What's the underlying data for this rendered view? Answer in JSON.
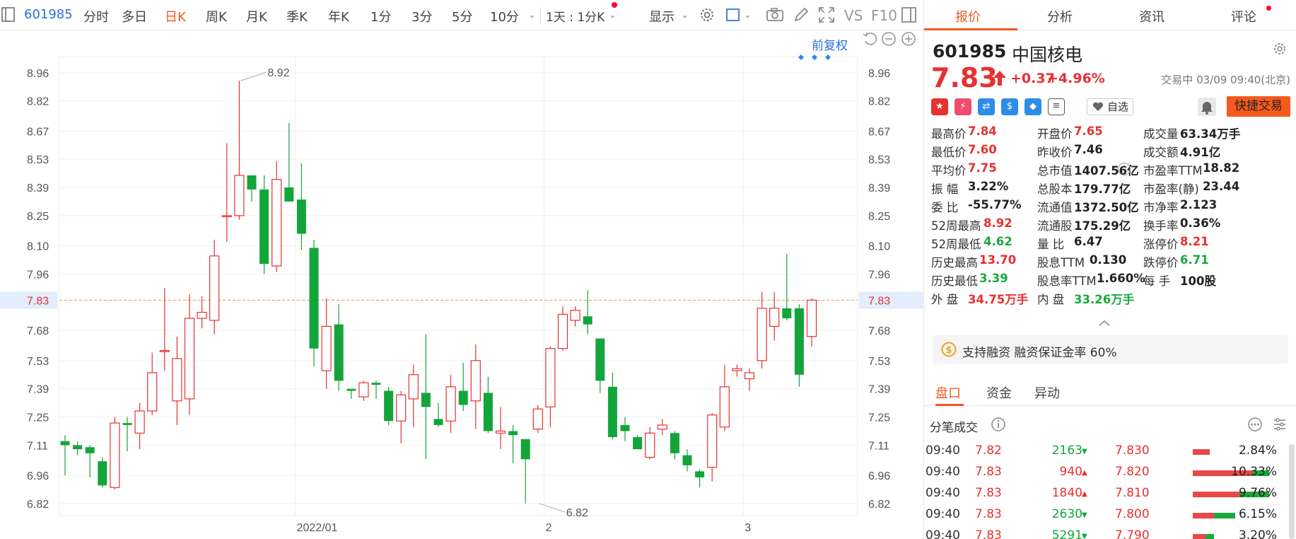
{
  "toolbar": {
    "code": "601985",
    "tabs": [
      "分时",
      "多日",
      "日K",
      "周K",
      "月K",
      "季K",
      "年K",
      "1分",
      "3分",
      "5分",
      "10分"
    ],
    "active_tab": "日K",
    "interval": "1天 : 1分K",
    "display": "显示",
    "vs": "VS",
    "f10": "F10"
  },
  "chart_controls": {
    "adjust": "前复权"
  },
  "chart_data": {
    "type": "candlestick",
    "title": "",
    "y_ticks": [
      8.96,
      8.82,
      8.67,
      8.53,
      8.39,
      8.25,
      8.1,
      7.96,
      7.83,
      7.68,
      7.53,
      7.39,
      7.25,
      7.11,
      6.96,
      6.82
    ],
    "ylim": [
      6.76,
      9.04
    ],
    "current_price": 7.83,
    "x_labels": [
      {
        "index": 19,
        "label": "2022/01"
      },
      {
        "index": 39,
        "label": "2"
      },
      {
        "index": 55,
        "label": "3"
      }
    ],
    "annotations": [
      {
        "index": 14,
        "value": 8.92,
        "label": "8.92"
      },
      {
        "index": 38,
        "value": 6.82,
        "label": "6.82"
      }
    ],
    "candles": [
      {
        "o": 7.13,
        "h": 7.16,
        "l": 6.96,
        "c": 7.11
      },
      {
        "o": 7.11,
        "h": 7.13,
        "l": 7.06,
        "c": 7.09
      },
      {
        "o": 7.1,
        "h": 7.11,
        "l": 6.95,
        "c": 7.07
      },
      {
        "o": 7.03,
        "h": 7.05,
        "l": 6.9,
        "c": 6.91
      },
      {
        "o": 6.9,
        "h": 7.25,
        "l": 6.89,
        "c": 7.22
      },
      {
        "o": 7.22,
        "h": 7.25,
        "l": 7.08,
        "c": 7.21
      },
      {
        "o": 7.17,
        "h": 7.32,
        "l": 7.09,
        "c": 7.28
      },
      {
        "o": 7.28,
        "h": 7.57,
        "l": 7.26,
        "c": 7.47
      },
      {
        "o": 7.58,
        "h": 7.89,
        "l": 7.48,
        "c": 7.58
      },
      {
        "o": 7.33,
        "h": 7.65,
        "l": 7.21,
        "c": 7.54
      },
      {
        "o": 7.34,
        "h": 7.86,
        "l": 7.26,
        "c": 7.74
      },
      {
        "o": 7.74,
        "h": 7.85,
        "l": 7.69,
        "c": 7.77
      },
      {
        "o": 7.73,
        "h": 8.13,
        "l": 7.66,
        "c": 8.05
      },
      {
        "o": 8.25,
        "h": 8.61,
        "l": 8.12,
        "c": 8.25
      },
      {
        "o": 8.25,
        "h": 8.92,
        "l": 8.23,
        "c": 8.45
      },
      {
        "o": 8.45,
        "h": 8.45,
        "l": 8.32,
        "c": 8.38
      },
      {
        "o": 8.38,
        "h": 8.45,
        "l": 7.96,
        "c": 8.01
      },
      {
        "o": 8.0,
        "h": 8.52,
        "l": 7.97,
        "c": 8.43
      },
      {
        "o": 8.39,
        "h": 8.71,
        "l": 8.32,
        "c": 8.32
      },
      {
        "o": 8.33,
        "h": 8.51,
        "l": 8.08,
        "c": 8.16
      },
      {
        "o": 8.09,
        "h": 8.13,
        "l": 7.5,
        "c": 7.59
      },
      {
        "o": 7.48,
        "h": 7.84,
        "l": 7.39,
        "c": 7.7
      },
      {
        "o": 7.71,
        "h": 7.81,
        "l": 7.38,
        "c": 7.43
      },
      {
        "o": 7.39,
        "h": 7.39,
        "l": 7.34,
        "c": 7.38
      },
      {
        "o": 7.35,
        "h": 7.43,
        "l": 7.33,
        "c": 7.42
      },
      {
        "o": 7.42,
        "h": 7.43,
        "l": 7.34,
        "c": 7.41
      },
      {
        "o": 7.38,
        "h": 7.4,
        "l": 7.21,
        "c": 7.23
      },
      {
        "o": 7.23,
        "h": 7.38,
        "l": 7.12,
        "c": 7.36
      },
      {
        "o": 7.34,
        "h": 7.51,
        "l": 7.2,
        "c": 7.46
      },
      {
        "o": 7.37,
        "h": 7.66,
        "l": 7.04,
        "c": 7.3
      },
      {
        "o": 7.24,
        "h": 7.32,
        "l": 7.2,
        "c": 7.21
      },
      {
        "o": 7.23,
        "h": 7.46,
        "l": 7.17,
        "c": 7.4
      },
      {
        "o": 7.38,
        "h": 7.52,
        "l": 7.28,
        "c": 7.31
      },
      {
        "o": 7.33,
        "h": 7.61,
        "l": 7.19,
        "c": 7.53
      },
      {
        "o": 7.37,
        "h": 7.45,
        "l": 7.17,
        "c": 7.18
      },
      {
        "o": 7.17,
        "h": 7.3,
        "l": 7.09,
        "c": 7.18
      },
      {
        "o": 7.18,
        "h": 7.21,
        "l": 7.02,
        "c": 7.16
      },
      {
        "o": 7.14,
        "h": 7.14,
        "l": 6.82,
        "c": 7.04
      },
      {
        "o": 7.19,
        "h": 7.31,
        "l": 7.17,
        "c": 7.29
      },
      {
        "o": 7.3,
        "h": 7.6,
        "l": 7.2,
        "c": 7.59
      },
      {
        "o": 7.59,
        "h": 7.8,
        "l": 7.58,
        "c": 7.76
      },
      {
        "o": 7.73,
        "h": 7.8,
        "l": 7.7,
        "c": 7.78
      },
      {
        "o": 7.75,
        "h": 7.88,
        "l": 7.66,
        "c": 7.71
      },
      {
        "o": 7.64,
        "h": 7.64,
        "l": 7.37,
        "c": 7.43
      },
      {
        "o": 7.4,
        "h": 7.47,
        "l": 7.14,
        "c": 7.15
      },
      {
        "o": 7.21,
        "h": 7.25,
        "l": 7.13,
        "c": 7.18
      },
      {
        "o": 7.15,
        "h": 7.16,
        "l": 7.09,
        "c": 7.09
      },
      {
        "o": 7.05,
        "h": 7.2,
        "l": 7.04,
        "c": 7.17
      },
      {
        "o": 7.19,
        "h": 7.24,
        "l": 7.16,
        "c": 7.21
      },
      {
        "o": 7.17,
        "h": 7.18,
        "l": 7.04,
        "c": 7.07
      },
      {
        "o": 7.06,
        "h": 7.09,
        "l": 6.98,
        "c": 7.01
      },
      {
        "o": 6.98,
        "h": 6.99,
        "l": 6.9,
        "c": 6.95
      },
      {
        "o": 7.0,
        "h": 7.27,
        "l": 6.93,
        "c": 7.26
      },
      {
        "o": 7.2,
        "h": 7.51,
        "l": 7.18,
        "c": 7.4
      },
      {
        "o": 7.48,
        "h": 7.51,
        "l": 7.45,
        "c": 7.49
      },
      {
        "o": 7.44,
        "h": 7.49,
        "l": 7.38,
        "c": 7.47
      },
      {
        "o": 7.53,
        "h": 7.87,
        "l": 7.49,
        "c": 7.79
      },
      {
        "o": 7.7,
        "h": 7.87,
        "l": 7.63,
        "c": 7.79
      },
      {
        "o": 7.79,
        "h": 8.06,
        "l": 7.73,
        "c": 7.74
      },
      {
        "o": 7.79,
        "h": 7.81,
        "l": 7.4,
        "c": 7.46
      },
      {
        "o": 7.65,
        "h": 7.84,
        "l": 7.6,
        "c": 7.83
      }
    ]
  },
  "tabs": [
    "报价",
    "分析",
    "资讯",
    "评论"
  ],
  "quote": {
    "code": "601985",
    "name": "中国核电",
    "price": "7.83",
    "change": "+0.37",
    "change_pct": "+4.96%",
    "status": "交易中 03/09 09:40(北京)",
    "watch": "自选",
    "quick_trade": "快捷交易"
  },
  "stats": [
    [
      {
        "k": "最高价",
        "v": "7.84",
        "c": "red"
      },
      {
        "k": "开盘价",
        "v": "7.65",
        "c": "red"
      },
      {
        "k": "成交量",
        "v": "63.34万手",
        "c": "dark"
      }
    ],
    [
      {
        "k": "最低价",
        "v": "7.60",
        "c": "red"
      },
      {
        "k": "昨收价",
        "v": "7.46",
        "c": "dark"
      },
      {
        "k": "成交额",
        "v": "4.91亿",
        "c": "dark"
      }
    ],
    [
      {
        "k": "平均价",
        "v": "7.75",
        "c": "red"
      },
      {
        "k": "总市值",
        "v": "1407.56亿",
        "c": "dark"
      },
      {
        "k": "市盈率TTM",
        "v": "18.82",
        "c": "dark"
      }
    ],
    [
      {
        "k": "振    幅",
        "v": "3.22%",
        "c": "dark"
      },
      {
        "k": "总股本",
        "v": "179.77亿",
        "c": "dark"
      },
      {
        "k": "市盈率(静)",
        "v": "23.44",
        "c": "dark"
      }
    ],
    [
      {
        "k": "委    比",
        "v": "-55.77%",
        "c": "dark"
      },
      {
        "k": "流通值",
        "v": "1372.50亿",
        "c": "dark"
      },
      {
        "k": "市净率",
        "v": "2.123",
        "c": "dark"
      }
    ],
    [
      {
        "k": "52周最高",
        "v": "8.92",
        "c": "red"
      },
      {
        "k": "流通股",
        "v": "175.29亿",
        "c": "dark"
      },
      {
        "k": "换手率",
        "v": "0.36%",
        "c": "dark"
      }
    ],
    [
      {
        "k": "52周最低",
        "v": "4.62",
        "c": "green"
      },
      {
        "k": "量    比",
        "v": "6.47",
        "c": "dark"
      },
      {
        "k": "涨停价",
        "v": "8.21",
        "c": "red"
      }
    ],
    [
      {
        "k": "历史最高",
        "v": "13.70",
        "c": "red"
      },
      {
        "k": "股息TTM",
        "v": "0.130",
        "c": "dark"
      },
      {
        "k": "跌停价",
        "v": "6.71",
        "c": "green"
      }
    ],
    [
      {
        "k": "历史最低",
        "v": "3.39",
        "c": "green"
      },
      {
        "k": "股息率TTM",
        "v": "1.660%",
        "c": "dark"
      },
      {
        "k": "每    手",
        "v": "100股",
        "c": "dark"
      }
    ],
    [
      {
        "k": "外    盘",
        "v": "34.75万手",
        "c": "red"
      },
      {
        "k": "内    盘",
        "v": "33.26万手",
        "c": "green"
      }
    ]
  ],
  "banner": "支持融资 融资保证金率 60%",
  "subtabs": [
    "盘口",
    "资金",
    "异动"
  ],
  "ticks_title": "分笔成交",
  "ticks": [
    {
      "time": "09:40",
      "price": "7.82",
      "vol": "2163",
      "dir": "down",
      "p2": "7.830",
      "pct": "2.84%",
      "bar_red": 0.2,
      "bar_green": 0.0
    },
    {
      "time": "09:40",
      "price": "7.83",
      "vol": "940",
      "dir": "up",
      "p2": "7.820",
      "pct": "10.33%",
      "bar_red": 0.7,
      "bar_green": 0.2
    },
    {
      "time": "09:40",
      "price": "7.83",
      "vol": "1840",
      "dir": "up",
      "p2": "7.810",
      "pct": "9.76%",
      "bar_red": 0.55,
      "bar_green": 0.35
    },
    {
      "time": "09:40",
      "price": "7.83",
      "vol": "2630",
      "dir": "down",
      "p2": "7.800",
      "pct": "6.15%",
      "bar_red": 0.25,
      "bar_green": 0.25
    },
    {
      "time": "09:40",
      "price": "7.83",
      "vol": "5291",
      "dir": "down",
      "p2": "7.790",
      "pct": "3.20%",
      "bar_red": 0.15,
      "bar_green": 0.1
    }
  ],
  "colors": {
    "up": "#e93030",
    "down": "#13a53a",
    "accent": "#f05a24",
    "link": "#2a6fdb"
  }
}
